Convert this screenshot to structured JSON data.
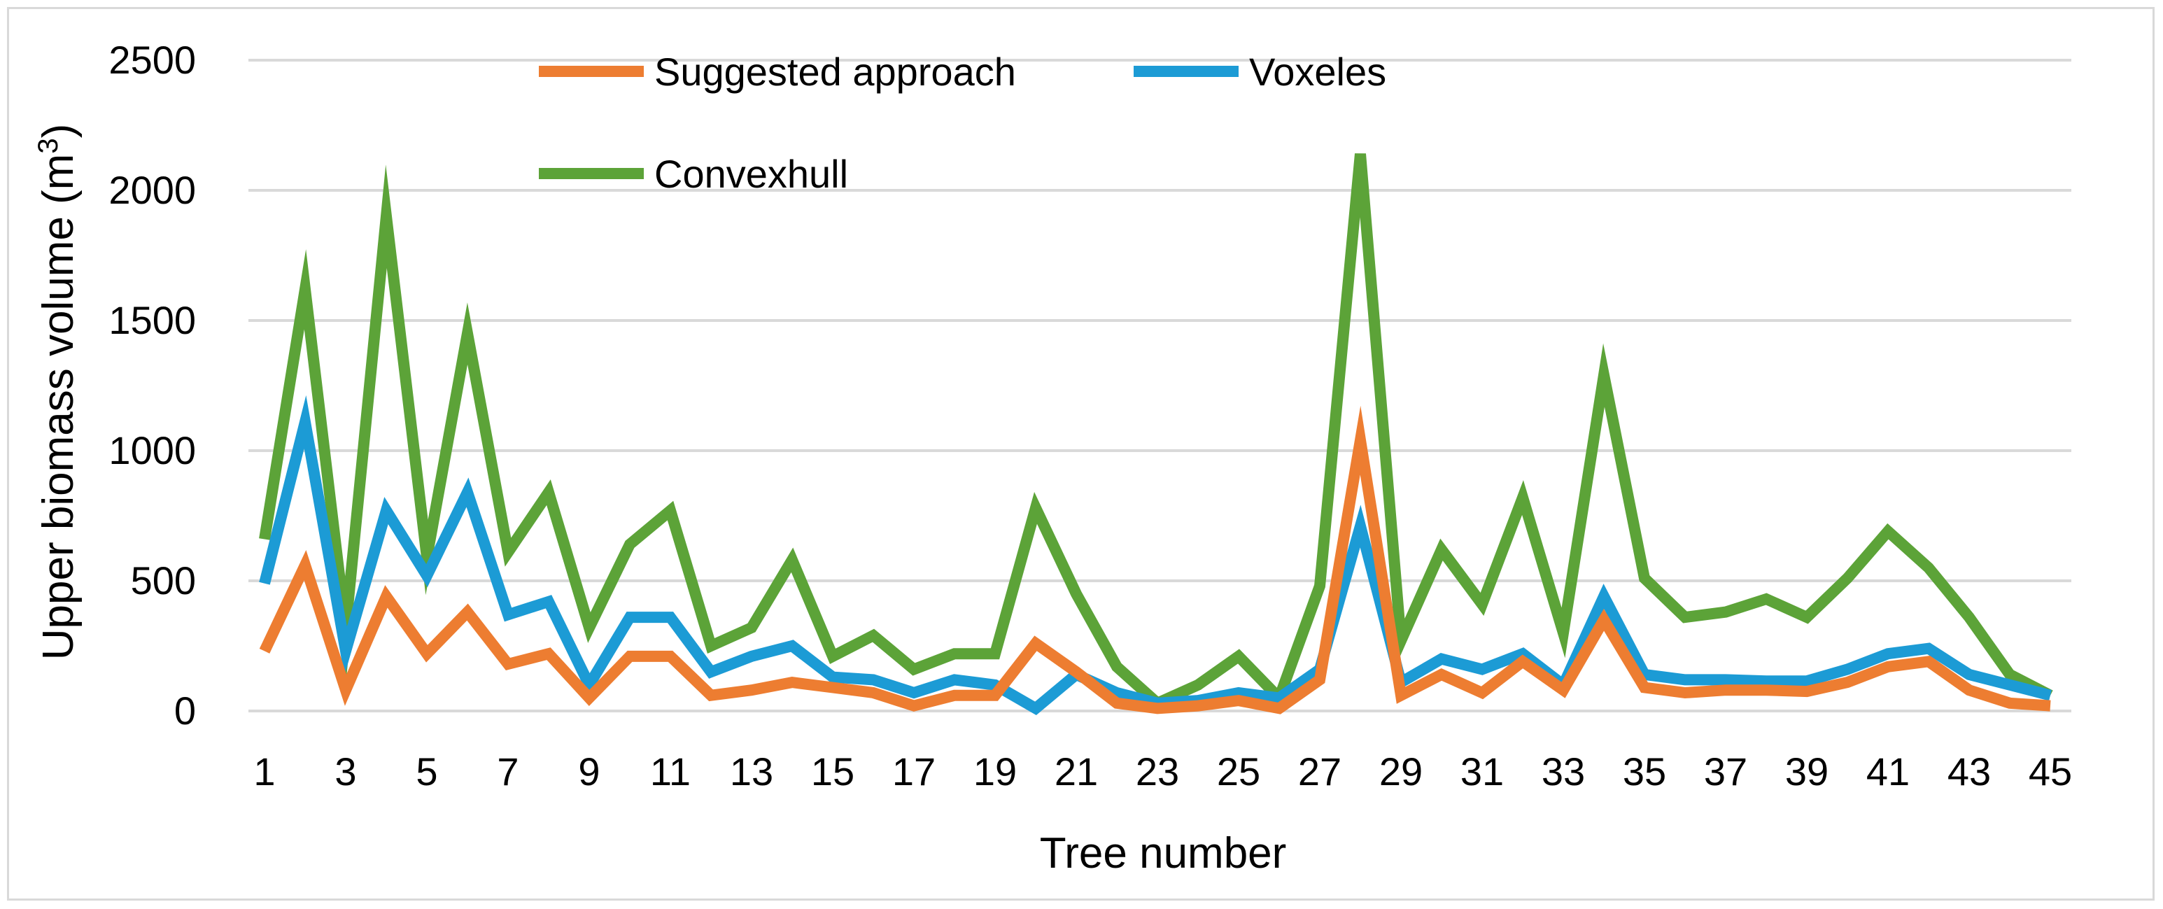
{
  "chart_data": {
    "type": "line",
    "xlabel": "Tree number",
    "ylabel_main": "Upper biomass volume (m",
    "ylabel_sup": "3",
    "ylabel_close": ")",
    "ylim": [
      0,
      2500
    ],
    "yticks": [
      0,
      500,
      1000,
      1500,
      2000,
      2500
    ],
    "x": [
      1,
      2,
      3,
      4,
      5,
      6,
      7,
      8,
      9,
      10,
      11,
      12,
      13,
      14,
      15,
      16,
      17,
      18,
      19,
      20,
      21,
      22,
      23,
      24,
      25,
      26,
      27,
      28,
      29,
      30,
      31,
      32,
      33,
      34,
      35,
      36,
      37,
      38,
      39,
      40,
      41,
      42,
      43,
      44,
      45
    ],
    "xtick_labels": [
      "1",
      "3",
      "5",
      "7",
      "9",
      "11",
      "13",
      "15",
      "17",
      "19",
      "21",
      "23",
      "25",
      "27",
      "29",
      "31",
      "33",
      "35",
      "37",
      "39",
      "41",
      "43",
      "45"
    ],
    "grid": true,
    "legend_position": "top-center",
    "series": [
      {
        "name": "Suggested approach",
        "color": "#ED7D31",
        "values": [
          230,
          560,
          80,
          440,
          220,
          380,
          180,
          220,
          50,
          210,
          210,
          60,
          80,
          110,
          90,
          70,
          20,
          60,
          60,
          260,
          150,
          30,
          10,
          20,
          40,
          10,
          120,
          1040,
          60,
          140,
          70,
          190,
          80,
          350,
          90,
          70,
          80,
          80,
          75,
          110,
          170,
          190,
          80,
          30,
          20
        ]
      },
      {
        "name": "Voxeles",
        "color": "#1C9BD5",
        "values": [
          490,
          1110,
          230,
          770,
          520,
          840,
          370,
          420,
          100,
          360,
          360,
          150,
          210,
          250,
          130,
          120,
          70,
          120,
          100,
          10,
          140,
          70,
          30,
          40,
          70,
          50,
          160,
          710,
          110,
          200,
          160,
          220,
          100,
          440,
          140,
          120,
          120,
          115,
          115,
          160,
          220,
          240,
          140,
          100,
          60
        ]
      },
      {
        "name": "Convexhull",
        "color": "#5CA338",
        "values": [
          660,
          1620,
          320,
          1900,
          590,
          1450,
          610,
          840,
          320,
          640,
          770,
          250,
          320,
          580,
          210,
          290,
          160,
          220,
          220,
          780,
          450,
          170,
          30,
          100,
          210,
          50,
          480,
          2140,
          270,
          620,
          410,
          820,
          300,
          1290,
          510,
          360,
          380,
          430,
          360,
          510,
          690,
          550,
          360,
          140,
          60
        ]
      }
    ]
  }
}
